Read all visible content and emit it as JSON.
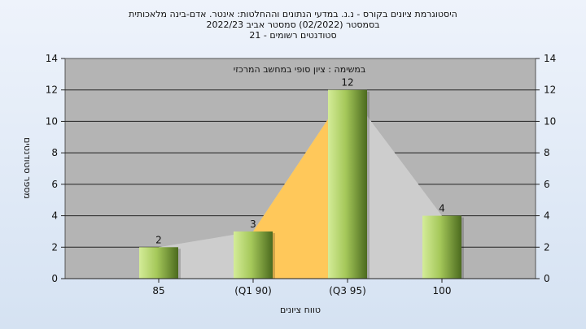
{
  "chart_data": {
    "type": "bar",
    "title_lines": [
      "היסטוגרמת ציונים בקורס - נ.נ. במדעי הנתונים וההחלטות: אינטר. אדם-בינה מלאכותית",
      "בסמסטר  (02/2022)  סמסטר אביב 2022/23",
      "סטודנטים רשומים - 21"
    ],
    "subtitle": "במשימה : ציון סופי במחשב המרכזי",
    "xlabel": "טווח ציונים",
    "ylabel": "מספר סטודנטים",
    "categories": [
      "85",
      "(Q1 90)",
      "(Q3 95)",
      "100"
    ],
    "values": [
      2,
      3,
      12,
      4
    ],
    "ylim": [
      0,
      14
    ],
    "yticks": [
      0,
      2,
      4,
      6,
      8,
      10,
      12,
      14
    ],
    "grid": true,
    "colors": {
      "plot_bg": "#b4b4b4",
      "bar_light": "#d4ec98",
      "bar_dark": "#4b6a1e",
      "area_orange": "#ffc85a",
      "area_gray": "#cdcdcd"
    },
    "quartile_band": [
      "(Q1 90)",
      "(Q3 95)"
    ]
  }
}
